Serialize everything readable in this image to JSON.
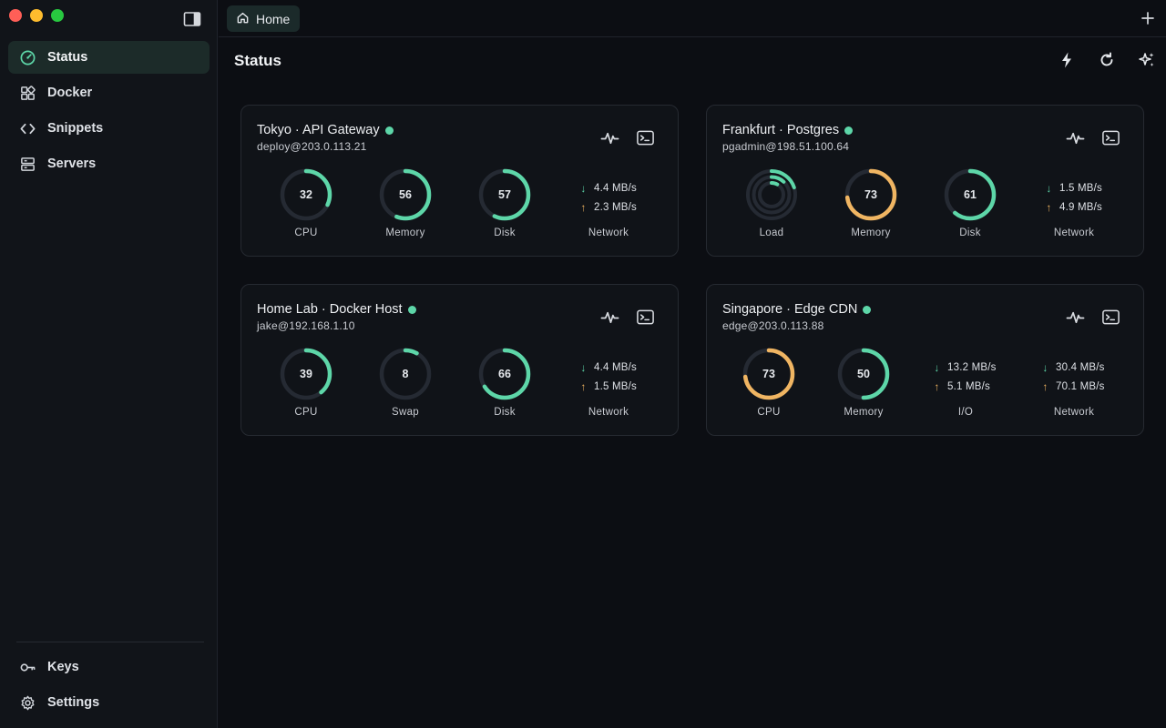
{
  "app": {
    "tab_home_label": "Home",
    "page_title": "Status"
  },
  "colors": {
    "accent": "#5dd6a8",
    "warn": "#f0b562",
    "track": "#252a33",
    "status_online": "#5dd6a8"
  },
  "sidebar": {
    "items": [
      {
        "label": "Status",
        "icon": "gauge-icon",
        "active": true
      },
      {
        "label": "Docker",
        "icon": "grid-icon"
      },
      {
        "label": "Snippets",
        "icon": "code-icon"
      },
      {
        "label": "Servers",
        "icon": "server-icon"
      }
    ],
    "bottom": [
      {
        "label": "Keys",
        "icon": "key-icon"
      },
      {
        "label": "Settings",
        "icon": "gear-icon"
      }
    ]
  },
  "header_actions": [
    {
      "icon": "bolt-icon"
    },
    {
      "icon": "refresh-icon"
    },
    {
      "icon": "sparkles-icon"
    }
  ],
  "servers": [
    {
      "name": "Tokyo · API Gateway",
      "address": "deploy@203.0.113.21",
      "online": true,
      "gauges": [
        {
          "label": "CPU",
          "value": 32,
          "color": "#5dd6a8"
        },
        {
          "label": "Memory",
          "value": 56,
          "color": "#5dd6a8"
        },
        {
          "label": "Disk",
          "value": 57,
          "color": "#5dd6a8"
        }
      ],
      "io": [
        {
          "label": "Network",
          "down": "4.4 MB/s",
          "up": "2.3 MB/s"
        }
      ]
    },
    {
      "name": "Frankfurt · Postgres",
      "address": "pgadmin@198.51.100.64",
      "online": true,
      "load": {
        "label": "Load",
        "rings": [
          0.2,
          0.12,
          0.08
        ]
      },
      "gauges": [
        {
          "label": "Memory",
          "value": 73,
          "color": "#f0b562"
        },
        {
          "label": "Disk",
          "value": 61,
          "color": "#5dd6a8"
        }
      ],
      "io": [
        {
          "label": "Network",
          "down": "1.5 MB/s",
          "up": "4.9 MB/s"
        }
      ]
    },
    {
      "name": "Home Lab · Docker Host",
      "address": "jake@192.168.1.10",
      "online": true,
      "gauges": [
        {
          "label": "CPU",
          "value": 39,
          "color": "#5dd6a8"
        },
        {
          "label": "Swap",
          "value": 8,
          "color": "#5dd6a8"
        },
        {
          "label": "Disk",
          "value": 66,
          "color": "#5dd6a8"
        }
      ],
      "io": [
        {
          "label": "Network",
          "down": "4.4 MB/s",
          "up": "1.5 MB/s"
        }
      ]
    },
    {
      "name": "Singapore · Edge CDN",
      "address": "edge@203.0.113.88",
      "online": true,
      "gauges": [
        {
          "label": "CPU",
          "value": 73,
          "color": "#f0b562"
        },
        {
          "label": "Memory",
          "value": 50,
          "color": "#5dd6a8"
        }
      ],
      "io": [
        {
          "label": "I/O",
          "down": "13.2 MB/s",
          "up": "5.1 MB/s"
        },
        {
          "label": "Network",
          "down": "30.4 MB/s",
          "up": "70.1 MB/s"
        }
      ]
    }
  ]
}
